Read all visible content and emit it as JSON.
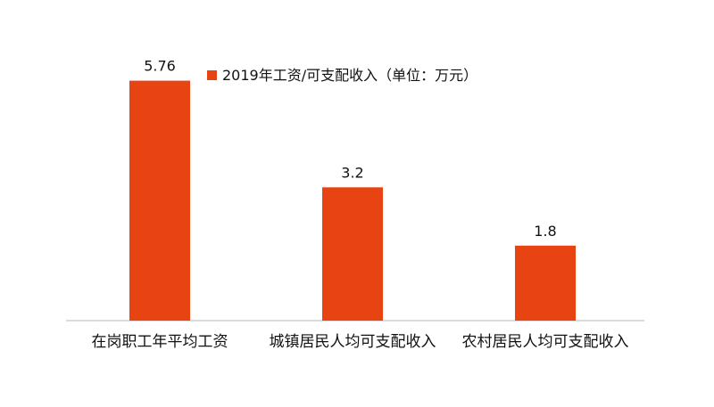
{
  "chart_data": {
    "type": "bar",
    "categories": [
      "在岗职工年平均工资",
      "城镇居民人均可支配收入",
      "农村居民人均可支配收入"
    ],
    "series": [
      {
        "name": "2019年工资/可支配收入（单位：万元）",
        "values": [
          5.76,
          3.2,
          1.8
        ],
        "data_labels": [
          "5.76",
          "3.2",
          "1.8"
        ]
      }
    ],
    "ylim": [
      0,
      6.2
    ],
    "grid": false,
    "legend": "top-right",
    "colors": {
      "bar": "#E84312",
      "axis": "#D0D0D0",
      "text": "#111111"
    }
  }
}
